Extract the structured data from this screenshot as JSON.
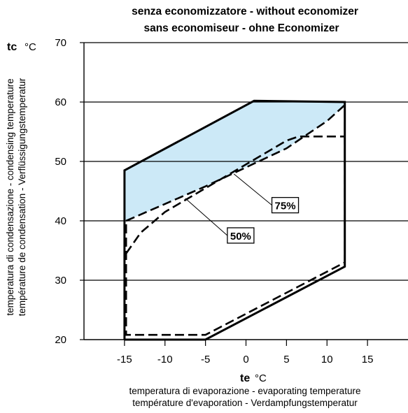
{
  "title_lines": [
    "senza economizzatore  -  without economizer",
    "sans economiseur  -  ohne Economizer"
  ],
  "y_axis": {
    "symbol": "tc",
    "unit": "°C",
    "label_lines": [
      "temperatura di condensazione - condensing temperature",
      "température de condensation - Verflüssigungstemperatur"
    ]
  },
  "x_axis": {
    "symbol": "te",
    "unit": "°C",
    "label_lines": [
      "temperatura di evaporazione  -   evaporating temperature",
      "température d'evaporation  -  Verdampfungstemperatur"
    ]
  },
  "chart_data": {
    "type": "line",
    "xlim": [
      -20,
      20
    ],
    "ylim": [
      20,
      70
    ],
    "x_ticks": [
      -15,
      -10,
      -5,
      0,
      5,
      10,
      15
    ],
    "y_ticks": [
      20,
      30,
      40,
      50,
      60,
      70
    ],
    "grid": true,
    "fill_color": "#cce9f7",
    "series": [
      {
        "name": "",
        "style": "solid",
        "points": [
          [
            -15,
            20
          ],
          [
            -5,
            20
          ],
          [
            12.2,
            32.3
          ],
          [
            12.2,
            60
          ],
          [
            1,
            60.2
          ],
          [
            -15,
            48.5
          ],
          [
            -15,
            20
          ]
        ]
      },
      {
        "name": "75%",
        "style": "dashed",
        "points": [
          [
            -14.8,
            40
          ],
          [
            -5,
            45.8
          ],
          [
            0,
            49
          ],
          [
            5,
            52.2
          ],
          [
            10,
            56.8
          ],
          [
            12.2,
            59.5
          ],
          [
            12.2,
            33
          ],
          [
            -5,
            20.8
          ],
          [
            -14.8,
            20.8
          ],
          [
            -14.8,
            40
          ]
        ]
      },
      {
        "name": "50%",
        "style": "dashed",
        "points": [
          [
            -14.8,
            34.5
          ],
          [
            -13,
            38
          ],
          [
            -10,
            41.5
          ],
          [
            -5,
            45.5
          ],
          [
            0,
            49.5
          ],
          [
            5,
            53.5
          ],
          [
            6.5,
            54.2
          ],
          [
            12.2,
            54.2
          ]
        ]
      }
    ],
    "shaded_region": [
      [
        -15,
        48.5
      ],
      [
        1,
        60.2
      ],
      [
        12.2,
        60
      ],
      [
        12.2,
        59.5
      ],
      [
        10,
        56.8
      ],
      [
        5,
        52.2
      ],
      [
        0,
        49
      ],
      [
        -5,
        45.8
      ],
      [
        -14.8,
        40
      ],
      [
        -15,
        40
      ]
    ],
    "annotations": [
      {
        "text": "75%",
        "leader_from": [
          -1.5,
          47.9
        ],
        "label_at": [
          3.2,
          42.4
        ]
      },
      {
        "text": "50%",
        "leader_from": [
          -7.5,
          43.8
        ],
        "label_at": [
          -2.3,
          37.3
        ]
      }
    ]
  }
}
